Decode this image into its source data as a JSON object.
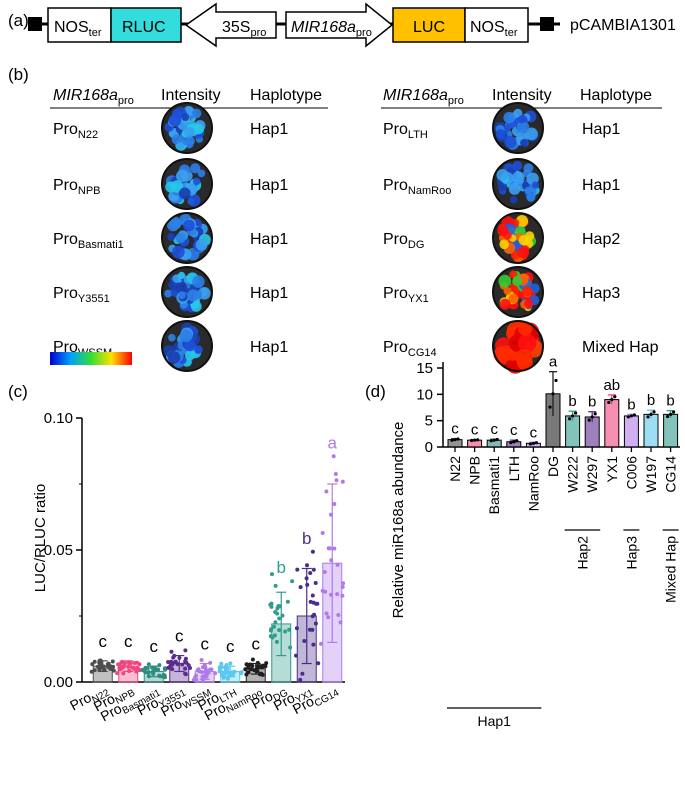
{
  "panel_a": {
    "label": "(a)",
    "nos_left": "NOS",
    "nos_left_sub": "ter",
    "rluc": "RLUC",
    "p35s": "35S",
    "p35s_sub": "pro",
    "mir": "MIR168a",
    "mir_sub": "pro",
    "luc": "LUC",
    "nos_right": "NOS",
    "nos_right_sub": "ter",
    "vector": "pCAMBIA1301",
    "colors": {
      "rluc": "#33DDDD",
      "luc": "#FFC000"
    }
  },
  "panel_b": {
    "label": "(b)",
    "headers": {
      "promoter": "MIR168a",
      "promoter_sub": "pro",
      "intensity": "Intensity",
      "haplotype": "Haplotype"
    },
    "rows_left": [
      {
        "pro": "Pro",
        "sub": "N22",
        "hap": "Hap1",
        "signal": "low"
      },
      {
        "pro": "Pro",
        "sub": "NPB",
        "hap": "Hap1",
        "signal": "low"
      },
      {
        "pro": "Pro",
        "sub": "Basmati1",
        "hap": "Hap1",
        "signal": "low"
      },
      {
        "pro": "Pro",
        "sub": "Y3551",
        "hap": "Hap1",
        "signal": "low"
      },
      {
        "pro": "Pro",
        "sub": "WSSM",
        "hap": "Hap1",
        "signal": "low"
      }
    ],
    "rows_right": [
      {
        "pro": "Pro",
        "sub": "LTH",
        "hap": "Hap1",
        "signal": "low"
      },
      {
        "pro": "Pro",
        "sub": "NamRoo",
        "hap": "Hap1",
        "signal": "low"
      },
      {
        "pro": "Pro",
        "sub": "DG",
        "hap": "Hap2",
        "signal": "high"
      },
      {
        "pro": "Pro",
        "sub": "YX1",
        "hap": "Hap3",
        "signal": "high"
      },
      {
        "pro": "Pro",
        "sub": "CG14",
        "hap": "Mixed Hap",
        "signal": "max"
      }
    ]
  },
  "chart_data": [
    {
      "panel": "(c)",
      "type": "bar",
      "ylabel": "LUC/RLUC ratio",
      "ylim": [
        0,
        0.1
      ],
      "yticks": [
        0.0,
        0.05,
        0.1
      ],
      "ytick_labels": [
        "0.00",
        "0.05",
        "0.10"
      ],
      "categories": [
        {
          "pro": "Pro",
          "sub": "N22"
        },
        {
          "pro": "Pro",
          "sub": "NPB"
        },
        {
          "pro": "Pro",
          "sub": "Basmati1"
        },
        {
          "pro": "Pro",
          "sub": "Y3551"
        },
        {
          "pro": "Pro",
          "sub": "WSSM"
        },
        {
          "pro": "Pro",
          "sub": "LTH"
        },
        {
          "pro": "Pro",
          "sub": "NamRoo"
        },
        {
          "pro": "Pro",
          "sub": "DG"
        },
        {
          "pro": "Pro",
          "sub": "YX1"
        },
        {
          "pro": "Pro",
          "sub": "CG14"
        }
      ],
      "values": [
        0.006,
        0.006,
        0.004,
        0.007,
        0.004,
        0.004,
        0.005,
        0.022,
        0.025,
        0.045
      ],
      "errors": [
        0.002,
        0.002,
        0.002,
        0.003,
        0.003,
        0.002,
        0.002,
        0.012,
        0.018,
        0.03
      ],
      "letters": [
        "c",
        "c",
        "c",
        "c",
        "c",
        "c",
        "c",
        "b",
        "b",
        "a"
      ],
      "colors": [
        "#4D4D4D",
        "#F0457F",
        "#2F8C80",
        "#5B2C8F",
        "#B07BE8",
        "#5BC8EE",
        "#1F1F1F",
        "#2F9C8C",
        "#4A2D8A",
        "#B07BE8"
      ]
    },
    {
      "panel": "(d)",
      "type": "bar",
      "ylabel": "Relative miR168a abundance",
      "ylim": [
        0,
        15
      ],
      "yticks": [
        0,
        5,
        10,
        15
      ],
      "ytick_labels": [
        "0",
        "5",
        "10",
        "15"
      ],
      "categories": [
        "N22",
        "NPB",
        "Basmati1",
        "LTH",
        "NamRoo",
        "DG",
        "W222",
        "W297",
        "YX1",
        "C006",
        "W197",
        "CG14"
      ],
      "values": [
        1.4,
        1.3,
        1.3,
        1.0,
        0.7,
        10.1,
        5.9,
        5.7,
        9.0,
        5.9,
        6.2,
        6.2
      ],
      "errors": [
        0.2,
        0.1,
        0.2,
        0.3,
        0.2,
        4.2,
        0.9,
        1.0,
        0.9,
        0.3,
        0.8,
        0.7
      ],
      "letters": [
        "c",
        "c",
        "c",
        "c",
        "c",
        "a",
        "b",
        "b",
        "ab",
        "b",
        "b",
        "b"
      ],
      "colors": [
        "#4D4D4D",
        "#F0457F",
        "#2F8C80",
        "#5B2C8F",
        "#B07BE8",
        "#1F1F1F",
        "#2F9C8C",
        "#5B2C8F",
        "#F0457F",
        "#B07BE8",
        "#5BC8EE",
        "#2F9C8C"
      ],
      "groups": [
        {
          "label": "Hap1",
          "from": 0,
          "to": 4
        },
        {
          "label": "Hap2",
          "from": 6,
          "to": 7
        },
        {
          "label": "Hap3",
          "from": 9,
          "to": 9
        },
        {
          "label": "Mixed Hap",
          "from": 11,
          "to": 11
        }
      ]
    }
  ]
}
